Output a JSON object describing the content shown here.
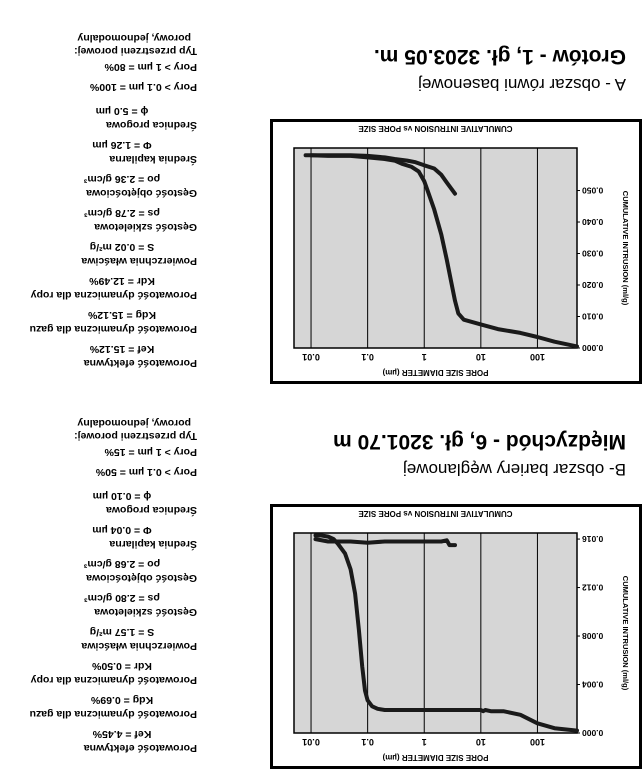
{
  "chart_data": [
    {
      "type": "line",
      "title": "CUMULATIVE INTRUSION  vs  PORE SIZE",
      "xlabel": "PORE SIZE DIAMETER (µm)",
      "ylabel": "CUMULATIVE INTRUSION (ml/g)",
      "x_scale": "log",
      "x_reversed": true,
      "xlim": [
        0.005,
        500
      ],
      "xticks": [
        "100",
        "10",
        "1",
        "0.1",
        "0.01"
      ],
      "yticks": [
        "0.000",
        "0.004",
        "0.008",
        "0.012",
        "0.016"
      ],
      "ylim": [
        0,
        0.0165
      ],
      "y_inverted": true,
      "grid": true,
      "series": [
        {
          "x": [
            500,
            200,
            100,
            50,
            25,
            15,
            12,
            11,
            10,
            5,
            2,
            1,
            0.5,
            0.2,
            0.15,
            0.12,
            0.1,
            0.09,
            0.08,
            0.07,
            0.06,
            0.05,
            0.04,
            0.03,
            0.025,
            0.02,
            0.015,
            0.012
          ],
          "y": [
            0.0002,
            0.0004,
            0.0008,
            0.0015,
            0.0018,
            0.0018,
            0.0019,
            0.0018,
            0.0019,
            0.0019,
            0.0019,
            0.0019,
            0.0019,
            0.0019,
            0.002,
            0.0022,
            0.0027,
            0.0035,
            0.0055,
            0.0085,
            0.0115,
            0.0135,
            0.0148,
            0.0156,
            0.016,
            0.0162,
            0.0163,
            0.0163
          ]
        },
        {
          "x": [
            3.5,
            2.8,
            2.5,
            2.0,
            1.5,
            1.0,
            0.5,
            0.2,
            0.1,
            0.05,
            0.03,
            0.02,
            0.012
          ],
          "y": [
            0.0155,
            0.0155,
            0.0159,
            0.0158,
            0.0158,
            0.0158,
            0.0158,
            0.0158,
            0.0157,
            0.0158,
            0.0158,
            0.0158,
            0.016
          ]
        }
      ]
    },
    {
      "type": "line",
      "title": "CUMULATIVE INTRUSION  vs  PORE SIZE",
      "xlabel": "PORE SIZE DIAMETER (µm)",
      "ylabel": "CUMULATIVE INTRUSION (ml/g)",
      "x_scale": "log",
      "x_reversed": true,
      "xlim": [
        0.005,
        500
      ],
      "xticks": [
        "100",
        "10",
        "1",
        "0.1",
        "0.01"
      ],
      "yticks": [
        "0.000",
        "0.010",
        "0.020",
        "0.030",
        "0.040",
        "0.050"
      ],
      "ylim": [
        0,
        0.0635
      ],
      "y_inverted": true,
      "grid": true,
      "series": [
        {
          "x": [
            500,
            200,
            100,
            50,
            20,
            10,
            5,
            4,
            3.5,
            3,
            2.5,
            2,
            1.5,
            1.2,
            1.0,
            0.8,
            0.6,
            0.4,
            0.3,
            0.2,
            0.1,
            0.05,
            0.02,
            0.01,
            0.008
          ],
          "y": [
            0.0005,
            0.002,
            0.0035,
            0.0048,
            0.006,
            0.0075,
            0.009,
            0.011,
            0.015,
            0.021,
            0.028,
            0.036,
            0.044,
            0.049,
            0.053,
            0.056,
            0.0575,
            0.0585,
            0.0595,
            0.06,
            0.0605,
            0.061,
            0.061,
            0.0612,
            0.0612
          ]
        },
        {
          "x": [
            3.5,
            2.5,
            2.0,
            1.5,
            1.0,
            0.7,
            0.5,
            0.3,
            0.2,
            0.1,
            0.05,
            0.02,
            0.01
          ],
          "y": [
            0.049,
            0.0525,
            0.055,
            0.057,
            0.058,
            0.059,
            0.0595,
            0.06,
            0.0605,
            0.061,
            0.0612,
            0.0612,
            0.0612
          ]
        }
      ]
    }
  ],
  "panels": [
    {
      "well": "Międzychód - 6, gł. 3201.70 m",
      "region": "B- obszar bariery węglanowej",
      "params": [
        {
          "name": "Porowatość efektywna",
          "value": "Kef = 4.45%"
        },
        {
          "name": "Porowatość dynamiczna dla gazu",
          "value": "Kdg = 0.69%"
        },
        {
          "name": "Porowatość dynamiczna dla ropy",
          "value": "Kdr = 0.50%"
        },
        {
          "name": "Powierzchnia właściwa",
          "value": "S = 1.57 m²/g"
        },
        {
          "name": "Gęstość szkieletowa",
          "value": "ρs = 2.80 g/cm³"
        },
        {
          "name": "Gęstość objętościowa",
          "value": "ρo = 2.68 g/cm³"
        },
        {
          "name": "Średnia kapilarna",
          "value": "Φ = 0.04 µm"
        },
        {
          "name": "Średnica progowa",
          "value": "ϕ = 0.10 µm"
        }
      ],
      "pores": [
        "Pory > 0.1 µm = 50%",
        "Pory > 1 µm = 15%"
      ],
      "pore_type": [
        "Typ przestrzeni porowej:",
        "porowy, jednomodalny"
      ]
    },
    {
      "well": "Grotów - 1, gł. 3203.05 m.",
      "region": "A - obszar równi basenowej",
      "params": [
        {
          "name": "Porowatość efektywna",
          "value": "Kef = 15.12%"
        },
        {
          "name": "Porowatość dynamiczna dla gazu",
          "value": "Kdg = 15.12%"
        },
        {
          "name": "Porowatość dynamiczna dla ropy",
          "value": "Kdr = 12.49%"
        },
        {
          "name": "Powierzchnia właściwa",
          "value": "S = 0.02 m²/g"
        },
        {
          "name": "Gęstość szkieletowa",
          "value": "ρs = 2.78 g/cm³"
        },
        {
          "name": "Gęstość objętościowa",
          "value": "ρo = 2.36 g/cm³"
        },
        {
          "name": "Średnia kapilarna",
          "value": "Φ = 1.26 µm"
        },
        {
          "name": "Średnica progowa",
          "value": "ϕ = 5.0 µm"
        }
      ],
      "pores": [
        "Pory > 0.1 µm = 100%",
        "Pory > 1 µm = 80%"
      ],
      "pore_type": [
        "Typ przestrzeni porowej:",
        "porowy, jednomodalny"
      ]
    }
  ],
  "colors": {
    "plot_bg": "#d6d6d6",
    "line": "#1a1a1a",
    "grid": "#000000"
  }
}
